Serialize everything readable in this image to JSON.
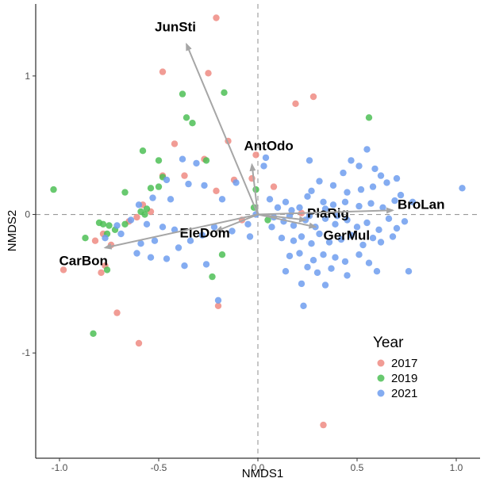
{
  "chart_data": {
    "type": "scatter",
    "xlabel": "NMDS1",
    "ylabel": "NMDS2",
    "xlim": [
      -1.12,
      1.12
    ],
    "ylim": [
      -1.76,
      1.52
    ],
    "xticks": [
      {
        "value": -1.0,
        "label": "-1.0"
      },
      {
        "value": -0.5,
        "label": "-0.5"
      },
      {
        "value": 0.0,
        "label": "0.0"
      },
      {
        "value": 0.5,
        "label": "0.5"
      },
      {
        "value": 1.0,
        "label": "1.0"
      }
    ],
    "yticks": [
      {
        "value": -1,
        "label": "-1"
      },
      {
        "value": 0,
        "label": "0"
      },
      {
        "value": 1,
        "label": "1"
      }
    ],
    "reference_lines": {
      "x": 0,
      "y": 0,
      "style": "dashed",
      "color": "#999999"
    },
    "grid": false,
    "legend": {
      "title": "Year",
      "placement": "bottom-right",
      "entries": [
        {
          "label": "2017",
          "color": "#EE8B82"
        },
        {
          "label": "2019",
          "color": "#4EBF56"
        },
        {
          "label": "2021",
          "color": "#6F9DEE"
        }
      ]
    },
    "series": [
      {
        "name": "2017",
        "color": "#EE8B82",
        "points": [
          [
            -0.21,
            1.42
          ],
          [
            -0.48,
            1.03
          ],
          [
            -0.25,
            1.02
          ],
          [
            0.19,
            0.8
          ],
          [
            0.28,
            0.85
          ],
          [
            -0.42,
            0.51
          ],
          [
            -0.15,
            0.53
          ],
          [
            -0.27,
            0.4
          ],
          [
            -0.37,
            0.28
          ],
          [
            -0.48,
            0.28
          ],
          [
            -0.12,
            0.25
          ],
          [
            -0.01,
            0.43
          ],
          [
            -0.03,
            0.26
          ],
          [
            0.08,
            0.2
          ],
          [
            -0.21,
            0.17
          ],
          [
            -0.58,
            0.07
          ],
          [
            -0.54,
            0.02
          ],
          [
            -0.61,
            -0.02
          ],
          [
            -0.65,
            -0.05
          ],
          [
            -0.08,
            -0.04
          ],
          [
            -0.78,
            -0.14
          ],
          [
            -0.82,
            -0.19
          ],
          [
            -0.74,
            -0.22
          ],
          [
            -0.77,
            -0.37
          ],
          [
            -0.98,
            -0.4
          ],
          [
            -0.79,
            -0.42
          ],
          [
            -0.71,
            -0.71
          ],
          [
            -0.6,
            -0.93
          ],
          [
            -0.2,
            -0.66
          ],
          [
            0.33,
            -1.52
          ],
          [
            0.22,
            0.01
          ]
        ]
      },
      {
        "name": "2019",
        "color": "#4EBF56",
        "points": [
          [
            -0.38,
            0.87
          ],
          [
            -0.17,
            0.88
          ],
          [
            -0.36,
            0.7
          ],
          [
            -0.33,
            0.66
          ],
          [
            0.56,
            0.7
          ],
          [
            -0.58,
            0.46
          ],
          [
            -0.5,
            0.39
          ],
          [
            -0.26,
            0.39
          ],
          [
            -0.48,
            0.27
          ],
          [
            -0.5,
            0.2
          ],
          [
            -0.54,
            0.19
          ],
          [
            -1.03,
            0.18
          ],
          [
            -0.67,
            0.16
          ],
          [
            -0.56,
            0.04
          ],
          [
            -0.59,
            0.02
          ],
          [
            -0.57,
            0.0
          ],
          [
            -0.8,
            -0.06
          ],
          [
            -0.78,
            -0.07
          ],
          [
            -0.75,
            -0.08
          ],
          [
            -0.72,
            -0.11
          ],
          [
            -0.76,
            -0.14
          ],
          [
            -0.87,
            -0.17
          ],
          [
            -0.67,
            -0.07
          ],
          [
            -0.18,
            -0.29
          ],
          [
            -0.23,
            -0.45
          ],
          [
            -0.76,
            -0.4
          ],
          [
            -0.83,
            -0.86
          ],
          [
            -0.02,
            0.05
          ],
          [
            0.05,
            -0.04
          ],
          [
            -0.01,
            0.18
          ]
        ]
      },
      {
        "name": "2021",
        "color": "#6F9DEE",
        "points": [
          [
            0.55,
            0.47
          ],
          [
            0.47,
            0.39
          ],
          [
            0.51,
            0.35
          ],
          [
            0.43,
            0.3
          ],
          [
            0.59,
            0.33
          ],
          [
            0.62,
            0.28
          ],
          [
            0.7,
            0.26
          ],
          [
            0.65,
            0.23
          ],
          [
            0.58,
            0.2
          ],
          [
            0.52,
            0.18
          ],
          [
            0.45,
            0.16
          ],
          [
            0.38,
            0.21
          ],
          [
            0.31,
            0.24
          ],
          [
            0.27,
            0.17
          ],
          [
            0.25,
            0.13
          ],
          [
            0.33,
            0.09
          ],
          [
            0.38,
            0.07
          ],
          [
            0.44,
            0.09
          ],
          [
            0.51,
            0.06
          ],
          [
            0.57,
            0.08
          ],
          [
            0.63,
            0.05
          ],
          [
            0.69,
            0.1
          ],
          [
            0.72,
            0.14
          ],
          [
            0.78,
            0.09
          ],
          [
            1.03,
            0.19
          ],
          [
            0.1,
            0.05
          ],
          [
            0.14,
            0.09
          ],
          [
            0.17,
            0.03
          ],
          [
            0.21,
            0.05
          ],
          [
            0.06,
            0.11
          ],
          [
            0.03,
            0.35
          ],
          [
            0.04,
            0.41
          ],
          [
            0.26,
            0.39
          ],
          [
            0.08,
            -0.02
          ],
          [
            0.13,
            -0.05
          ],
          [
            0.18,
            -0.08
          ],
          [
            0.24,
            -0.04
          ],
          [
            0.29,
            -0.09
          ],
          [
            0.34,
            -0.03
          ],
          [
            0.39,
            -0.07
          ],
          [
            0.45,
            -0.04
          ],
          [
            0.5,
            -0.09
          ],
          [
            0.55,
            -0.06
          ],
          [
            0.61,
            -0.11
          ],
          [
            0.66,
            -0.03
          ],
          [
            0.7,
            -0.1
          ],
          [
            0.74,
            -0.05
          ],
          [
            0.12,
            -0.17
          ],
          [
            0.18,
            -0.19
          ],
          [
            0.22,
            -0.16
          ],
          [
            0.27,
            -0.21
          ],
          [
            0.31,
            -0.14
          ],
          [
            0.36,
            -0.2
          ],
          [
            0.42,
            -0.18
          ],
          [
            0.47,
            -0.15
          ],
          [
            0.53,
            -0.22
          ],
          [
            0.58,
            -0.17
          ],
          [
            0.62,
            -0.2
          ],
          [
            0.68,
            -0.16
          ],
          [
            0.16,
            -0.3
          ],
          [
            0.21,
            -0.28
          ],
          [
            0.28,
            -0.33
          ],
          [
            0.33,
            -0.29
          ],
          [
            0.39,
            -0.31
          ],
          [
            0.44,
            -0.34
          ],
          [
            0.51,
            -0.29
          ],
          [
            0.56,
            -0.35
          ],
          [
            0.25,
            -0.38
          ],
          [
            0.3,
            -0.42
          ],
          [
            0.37,
            -0.39
          ],
          [
            0.45,
            -0.44
          ],
          [
            0.6,
            -0.41
          ],
          [
            0.76,
            -0.41
          ],
          [
            0.14,
            -0.41
          ],
          [
            0.22,
            -0.5
          ],
          [
            0.34,
            -0.51
          ],
          [
            0.23,
            -0.66
          ],
          [
            -0.38,
            0.4
          ],
          [
            -0.31,
            0.37
          ],
          [
            -0.46,
            0.25
          ],
          [
            -0.35,
            0.22
          ],
          [
            -0.27,
            0.21
          ],
          [
            -0.11,
            0.23
          ],
          [
            -0.18,
            0.11
          ],
          [
            -0.44,
            0.11
          ],
          [
            -0.6,
            0.07
          ],
          [
            -0.53,
            0.12
          ],
          [
            -0.64,
            -0.04
          ],
          [
            -0.56,
            -0.07
          ],
          [
            -0.48,
            -0.09
          ],
          [
            -0.42,
            -0.11
          ],
          [
            -0.52,
            -0.19
          ],
          [
            -0.59,
            -0.21
          ],
          [
            -0.4,
            -0.24
          ],
          [
            -0.34,
            -0.19
          ],
          [
            -0.28,
            -0.15
          ],
          [
            -0.22,
            -0.09
          ],
          [
            -0.13,
            -0.12
          ],
          [
            -0.05,
            -0.07
          ],
          [
            -0.04,
            -0.16
          ],
          [
            -0.46,
            -0.32
          ],
          [
            -0.37,
            -0.37
          ],
          [
            -0.26,
            -0.36
          ],
          [
            -0.2,
            -0.62
          ],
          [
            -0.71,
            -0.08
          ],
          [
            -0.69,
            -0.14
          ],
          [
            -0.77,
            -0.17
          ],
          [
            -0.61,
            -0.28
          ],
          [
            -0.54,
            -0.31
          ],
          [
            0.07,
            -0.09
          ],
          [
            -0.01,
            0.0
          ],
          [
            0.16,
            -0.01
          ],
          [
            0.26,
            -0.01
          ],
          [
            0.34,
            0.04
          ],
          [
            0.4,
            -0.01
          ]
        ]
      }
    ],
    "vectors": [
      {
        "label": "JunSti",
        "x": -0.36,
        "y": 1.23
      },
      {
        "label": "AntOdo",
        "x": -0.03,
        "y": 0.36
      },
      {
        "label": "PlaRig",
        "x": 0.24,
        "y": -0.04
      },
      {
        "label": "BroLan",
        "x": 0.68,
        "y": 0.03
      },
      {
        "label": "GerMul",
        "x": 0.29,
        "y": -0.09
      },
      {
        "label": "EleDom",
        "x": -0.21,
        "y": -0.12
      },
      {
        "label": "CarBon",
        "x": -0.77,
        "y": -0.24
      }
    ],
    "vector_color": "#A6A6A6"
  }
}
